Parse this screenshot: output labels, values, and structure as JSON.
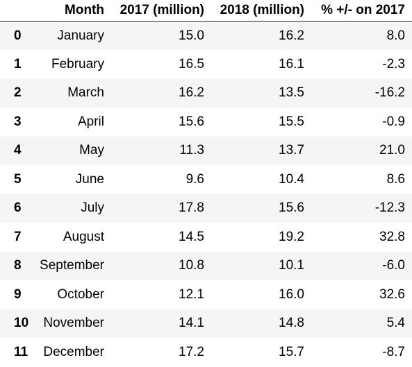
{
  "table": {
    "columns": [
      "",
      "Month",
      "2017 (million)",
      "2018 (million)",
      "% +/- on 2017"
    ],
    "rows": [
      {
        "index": "0",
        "month": "January",
        "y2017": "15.0",
        "y2018": "16.2",
        "pct": "8.0"
      },
      {
        "index": "1",
        "month": "February",
        "y2017": "16.5",
        "y2018": "16.1",
        "pct": "-2.3"
      },
      {
        "index": "2",
        "month": "March",
        "y2017": "16.2",
        "y2018": "13.5",
        "pct": "-16.2"
      },
      {
        "index": "3",
        "month": "April",
        "y2017": "15.6",
        "y2018": "15.5",
        "pct": "-0.9"
      },
      {
        "index": "4",
        "month": "May",
        "y2017": "11.3",
        "y2018": "13.7",
        "pct": "21.0"
      },
      {
        "index": "5",
        "month": "June",
        "y2017": "9.6",
        "y2018": "10.4",
        "pct": "8.6"
      },
      {
        "index": "6",
        "month": "July",
        "y2017": "17.8",
        "y2018": "15.6",
        "pct": "-12.3"
      },
      {
        "index": "7",
        "month": "August",
        "y2017": "14.5",
        "y2018": "19.2",
        "pct": "32.8"
      },
      {
        "index": "8",
        "month": "September",
        "y2017": "10.8",
        "y2018": "10.1",
        "pct": "-6.0"
      },
      {
        "index": "9",
        "month": "October",
        "y2017": "12.1",
        "y2018": "16.0",
        "pct": "32.6"
      },
      {
        "index": "10",
        "month": "November",
        "y2017": "14.1",
        "y2018": "14.8",
        "pct": "5.4"
      },
      {
        "index": "11",
        "month": "December",
        "y2017": "17.2",
        "y2018": "15.7",
        "pct": "-8.7"
      }
    ]
  },
  "colors": {
    "stripe": "#f5f5f5",
    "header_rule": "#222222",
    "text": "#000000"
  }
}
